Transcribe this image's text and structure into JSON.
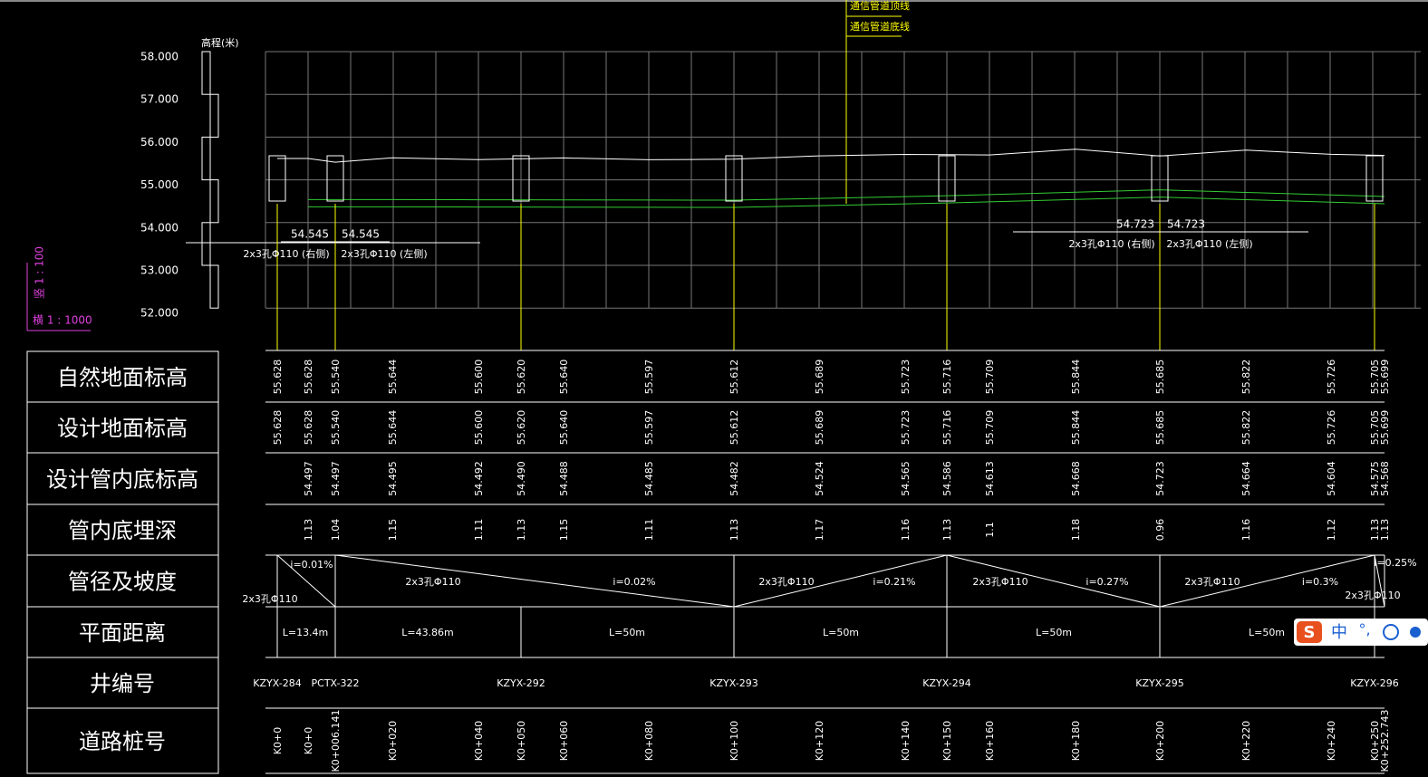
{
  "axis": {
    "unit": "高程(米)",
    "labels": [
      "58.000",
      "57.000",
      "56.000",
      "55.000",
      "54.000",
      "53.000",
      "52.000"
    ]
  },
  "scale": {
    "vertical": "竖 1 : 100",
    "horizontal": "横 1 : 1000"
  },
  "legend": [
    "通信管道顶线",
    "通信管道底线"
  ],
  "pipe_notes": [
    {
      "elevations": [
        "54.545",
        "54.545"
      ],
      "specs": [
        "2x3孔Φ110 (右侧)",
        "2x3孔Φ110 (左侧)"
      ]
    },
    {
      "elevations": [
        "54.723",
        "54.723"
      ],
      "specs": [
        "2x3孔Φ110 (右侧)",
        "2x3孔Φ110 (左侧)"
      ]
    }
  ],
  "table": {
    "headers": [
      "自然地面标高",
      "设计地面标高",
      "设计管内底标高",
      "管内底埋深",
      "管径及坡度",
      "平面距离",
      "井编号",
      "道路桩号"
    ],
    "natural_ground": [
      "55.628",
      "55.628",
      "55.540",
      "55.644",
      "55.600",
      "55.620",
      "55.640",
      "55.597",
      "55.612",
      "55.689",
      "55.723",
      "55.716",
      "55.709",
      "55.844",
      "55.685",
      "55.822",
      "55.726",
      "55.705",
      "55.699"
    ],
    "design_ground": [
      "55.628",
      "55.628",
      "55.540",
      "55.644",
      "55.600",
      "55.620",
      "55.640",
      "55.597",
      "55.612",
      "55.689",
      "55.723",
      "55.716",
      "55.709",
      "55.844",
      "55.685",
      "55.822",
      "55.726",
      "55.705",
      "55.699"
    ],
    "invert": [
      null,
      "54.497",
      "54.497",
      "54.495",
      "54.492",
      "54.490",
      "54.488",
      "54.485",
      "54.482",
      "54.524",
      "54.565",
      "54.586",
      "54.613",
      "54.668",
      "54.723",
      "54.664",
      "54.604",
      "54.575",
      "54.568"
    ],
    "depth": [
      null,
      "1.13",
      "1.04",
      "1.15",
      "1.11",
      "1.13",
      "1.15",
      "1.11",
      "1.13",
      "1.17",
      "1.16",
      "1.13",
      "1.1",
      "1.18",
      "0.96",
      "1.16",
      "1.12",
      "1.13",
      "1.13"
    ],
    "slopes": [
      {
        "slope": "i=0.01%",
        "pipe": "2x3孔Φ110"
      },
      {
        "pipe": "2x3孔Φ110",
        "slope": "i=0.02%"
      },
      {
        "pipe": "2x3孔Φ110",
        "slope": "i=0.21%"
      },
      {
        "pipe": "2x3孔Φ110",
        "slope": "i=0.27%"
      },
      {
        "pipe": "2x3孔Φ110",
        "slope": "i=0.3%"
      },
      {
        "slope": "i=0.25%",
        "pipe": "2x3孔Φ110"
      }
    ],
    "distances": [
      "L=13.4m",
      "L=43.86m",
      "L=50m",
      "L=50m",
      "L=50m",
      "L=50m"
    ],
    "wells": [
      "KZYX-284",
      "PCTX-322",
      "KZYX-292",
      "KZYX-293",
      "KZYX-294",
      "KZYX-295",
      "KZYX-296"
    ],
    "stations": [
      "K0+0",
      "K0+0",
      "K0+006.141",
      "K0+020",
      "K0+040",
      "K0+050",
      "K0+060",
      "K0+080",
      "K0+100",
      "K0+120",
      "K0+140",
      "K0+150",
      "K0+160",
      "K0+180",
      "K0+200",
      "K0+220",
      "K0+240",
      "K0+250",
      "K0+252.743"
    ]
  },
  "ime": {
    "logo": "S",
    "mode": "中",
    "punct": "°,"
  }
}
